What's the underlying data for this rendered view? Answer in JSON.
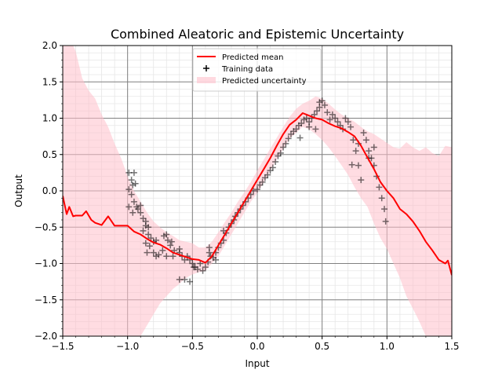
{
  "chart_data": {
    "type": "line",
    "title": "Combined Aleatoric and Epistemic Uncertainty",
    "xlabel": "Input",
    "ylabel": "Output",
    "xlim": [
      -1.5,
      1.5
    ],
    "ylim": [
      -2.0,
      2.0
    ],
    "x_ticks": [
      -1.5,
      -1.0,
      -0.5,
      0.0,
      0.5,
      1.0,
      1.5
    ],
    "x_tick_labels": [
      "−1.5",
      "−1.0",
      "−0.5",
      "0.0",
      "0.5",
      "1.0",
      "1.5"
    ],
    "y_ticks": [
      -2.0,
      -1.5,
      -1.0,
      -0.5,
      0.0,
      0.5,
      1.0,
      1.5,
      2.0
    ],
    "y_tick_labels": [
      "−2.0",
      "−1.5",
      "−1.0",
      "−0.5",
      "0.0",
      "0.5",
      "1.0",
      "1.5",
      "2.0"
    ],
    "grid": {
      "major": true,
      "minor": true
    },
    "legend": {
      "placement": "upper-center",
      "entries": [
        {
          "label": "Predicted mean",
          "kind": "line",
          "color": "#ff0000"
        },
        {
          "label": "Training data",
          "kind": "marker",
          "color": "#000000"
        },
        {
          "label": "Predicted uncertainty",
          "kind": "band",
          "color": "#ffc0cb"
        }
      ]
    },
    "colors": {
      "mean": "#ff0000",
      "data": "#000000",
      "band": "#ffc0cb",
      "major_grid": "#808080",
      "minor_grid": "#e6e6e6"
    },
    "series": [
      {
        "name": "Predicted mean",
        "x": [
          -1.5,
          -1.47,
          -1.45,
          -1.42,
          -1.4,
          -1.35,
          -1.32,
          -1.28,
          -1.25,
          -1.2,
          -1.15,
          -1.1,
          -1.05,
          -1.0,
          -0.95,
          -0.9,
          -0.85,
          -0.8,
          -0.75,
          -0.7,
          -0.65,
          -0.6,
          -0.55,
          -0.5,
          -0.45,
          -0.4,
          -0.35,
          -0.3,
          -0.25,
          -0.2,
          -0.15,
          -0.1,
          -0.05,
          0.0,
          0.05,
          0.1,
          0.15,
          0.2,
          0.25,
          0.3,
          0.35,
          0.38,
          0.42,
          0.45,
          0.5,
          0.55,
          0.6,
          0.65,
          0.7,
          0.75,
          0.8,
          0.85,
          0.9,
          0.95,
          1.0,
          1.05,
          1.1,
          1.15,
          1.2,
          1.25,
          1.3,
          1.35,
          1.4,
          1.45,
          1.47,
          1.5
        ],
        "y": [
          -0.07,
          -0.32,
          -0.22,
          -0.35,
          -0.34,
          -0.34,
          -0.28,
          -0.4,
          -0.44,
          -0.47,
          -0.35,
          -0.48,
          -0.48,
          -0.48,
          -0.56,
          -0.6,
          -0.66,
          -0.71,
          -0.74,
          -0.79,
          -0.85,
          -0.88,
          -0.91,
          -0.94,
          -0.95,
          -0.99,
          -0.9,
          -0.75,
          -0.6,
          -0.45,
          -0.3,
          -0.15,
          0.0,
          0.15,
          0.3,
          0.45,
          0.62,
          0.78,
          0.91,
          0.98,
          1.07,
          1.05,
          1.02,
          1.0,
          0.98,
          0.93,
          0.89,
          0.86,
          0.81,
          0.75,
          0.62,
          0.46,
          0.3,
          0.12,
          0.0,
          -0.1,
          -0.25,
          -0.32,
          -0.42,
          -0.55,
          -0.7,
          -0.82,
          -0.95,
          -1.0,
          -0.96,
          -1.16
        ]
      },
      {
        "name": "Predicted uncertainty",
        "x": [
          -1.5,
          -1.45,
          -1.42,
          -1.4,
          -1.35,
          -1.3,
          -1.25,
          -1.2,
          -1.15,
          -1.1,
          -1.05,
          -1.0,
          -0.95,
          -0.9,
          -0.85,
          -0.8,
          -0.75,
          -0.7,
          -0.65,
          -0.6,
          -0.55,
          -0.5,
          -0.45,
          -0.4,
          -0.35,
          -0.3,
          -0.25,
          -0.2,
          -0.15,
          -0.1,
          -0.05,
          0.0,
          0.05,
          0.1,
          0.15,
          0.2,
          0.25,
          0.3,
          0.35,
          0.4,
          0.45,
          0.5,
          0.55,
          0.6,
          0.65,
          0.7,
          0.75,
          0.8,
          0.85,
          0.9,
          0.95,
          1.0,
          1.05,
          1.1,
          1.15,
          1.2,
          1.25,
          1.3,
          1.35,
          1.4,
          1.45,
          1.5
        ],
        "upper": [
          2.0,
          2.0,
          2.0,
          1.92,
          1.55,
          1.38,
          1.27,
          1.05,
          0.88,
          0.65,
          0.45,
          0.2,
          0.0,
          -0.15,
          -0.3,
          -0.42,
          -0.5,
          -0.57,
          -0.62,
          -0.68,
          -0.7,
          -0.72,
          -0.78,
          -0.78,
          -0.7,
          -0.57,
          -0.43,
          -0.3,
          -0.15,
          -0.02,
          0.12,
          0.28,
          0.43,
          0.58,
          0.73,
          0.88,
          1.02,
          1.13,
          1.2,
          1.24,
          1.3,
          1.27,
          1.2,
          1.12,
          1.05,
          1.0,
          0.95,
          0.88,
          0.82,
          0.78,
          0.72,
          0.66,
          0.6,
          0.58,
          0.67,
          0.6,
          0.55,
          0.6,
          0.52,
          0.48,
          0.62,
          0.6
        ],
        "lower": [
          -2.0,
          -2.0,
          -2.0,
          -2.0,
          -2.0,
          -2.0,
          -2.0,
          -2.0,
          -2.0,
          -2.0,
          -2.0,
          -2.0,
          -2.0,
          -2.0,
          -1.85,
          -1.7,
          -1.55,
          -1.45,
          -1.35,
          -1.28,
          -1.2,
          -1.15,
          -1.12,
          -1.1,
          -1.0,
          -0.9,
          -0.75,
          -0.6,
          -0.45,
          -0.3,
          -0.15,
          -0.03,
          0.12,
          0.28,
          0.43,
          0.58,
          0.72,
          0.8,
          0.88,
          0.85,
          0.78,
          0.7,
          0.6,
          0.48,
          0.35,
          0.22,
          0.05,
          -0.1,
          -0.22,
          -0.45,
          -0.65,
          -0.8,
          -1.0,
          -1.2,
          -1.45,
          -1.62,
          -1.8,
          -2.0,
          -2.0,
          -2.0,
          -2.0,
          -2.0
        ]
      },
      {
        "name": "Training data",
        "points": [
          [
            -0.99,
            0.25
          ],
          [
            -0.95,
            0.25
          ],
          [
            -0.97,
            0.15
          ],
          [
            -0.96,
            0.08
          ],
          [
            -0.99,
            0.02
          ],
          [
            -0.94,
            0.1
          ],
          [
            -0.97,
            -0.05
          ],
          [
            -0.95,
            -0.15
          ],
          [
            -0.99,
            -0.22
          ],
          [
            -0.93,
            -0.22
          ],
          [
            -0.96,
            -0.3
          ],
          [
            -0.92,
            -0.25
          ],
          [
            -0.9,
            -0.2
          ],
          [
            -0.9,
            -0.3
          ],
          [
            -0.88,
            -0.38
          ],
          [
            -0.86,
            -0.42
          ],
          [
            -0.86,
            -0.48
          ],
          [
            -0.84,
            -0.5
          ],
          [
            -0.88,
            -0.55
          ],
          [
            -0.84,
            -0.6
          ],
          [
            -0.82,
            -0.65
          ],
          [
            -0.86,
            -0.72
          ],
          [
            -0.83,
            -0.76
          ],
          [
            -0.8,
            -0.7
          ],
          [
            -0.78,
            -0.68
          ],
          [
            -0.85,
            -0.85
          ],
          [
            -0.8,
            -0.85
          ],
          [
            -0.78,
            -0.9
          ],
          [
            -0.76,
            -0.88
          ],
          [
            -0.73,
            -0.82
          ],
          [
            -0.72,
            -0.62
          ],
          [
            -0.7,
            -0.6
          ],
          [
            -0.69,
            -0.68
          ],
          [
            -0.67,
            -0.75
          ],
          [
            -0.66,
            -0.7
          ],
          [
            -0.64,
            -0.82
          ],
          [
            -0.7,
            -0.9
          ],
          [
            -0.65,
            -0.9
          ],
          [
            -0.6,
            -0.8
          ],
          [
            -0.6,
            -0.85
          ],
          [
            -0.58,
            -0.9
          ],
          [
            -0.56,
            -0.95
          ],
          [
            -0.54,
            -0.9
          ],
          [
            -0.52,
            -0.95
          ],
          [
            -0.5,
            -1.0
          ],
          [
            -0.48,
            -1.05
          ],
          [
            -0.46,
            -1.08
          ],
          [
            -0.44,
            -1.0
          ],
          [
            -0.42,
            -1.1
          ],
          [
            -0.4,
            -1.05
          ],
          [
            -0.38,
            -0.98
          ],
          [
            -0.37,
            -0.85
          ],
          [
            -0.36,
            -0.9
          ],
          [
            -0.34,
            -0.92
          ],
          [
            -0.32,
            -0.85
          ],
          [
            -0.3,
            -0.78
          ],
          [
            -0.28,
            -0.72
          ],
          [
            -0.26,
            -0.68
          ],
          [
            -0.26,
            -0.55
          ],
          [
            -0.24,
            -0.58
          ],
          [
            -0.22,
            -0.5
          ],
          [
            -0.2,
            -0.45
          ],
          [
            -0.18,
            -0.4
          ],
          [
            -0.17,
            -0.35
          ],
          [
            -0.15,
            -0.3
          ],
          [
            -0.13,
            -0.25
          ],
          [
            -0.11,
            -0.2
          ],
          [
            -0.09,
            -0.15
          ],
          [
            -0.07,
            -0.1
          ],
          [
            -0.05,
            -0.05
          ],
          [
            -0.03,
            0.0
          ],
          [
            0.0,
            0.02
          ],
          [
            0.02,
            0.08
          ],
          [
            0.04,
            0.12
          ],
          [
            0.06,
            0.18
          ],
          [
            0.08,
            0.22
          ],
          [
            0.1,
            0.28
          ],
          [
            0.12,
            0.32
          ],
          [
            0.14,
            0.4
          ],
          [
            0.16,
            0.48
          ],
          [
            0.18,
            0.52
          ],
          [
            0.2,
            0.6
          ],
          [
            0.22,
            0.65
          ],
          [
            0.24,
            0.72
          ],
          [
            0.26,
            0.78
          ],
          [
            0.28,
            0.82
          ],
          [
            0.3,
            0.85
          ],
          [
            0.32,
            0.9
          ],
          [
            0.34,
            0.93
          ],
          [
            0.36,
            0.98
          ],
          [
            0.38,
            1.0
          ],
          [
            0.4,
            0.95
          ],
          [
            0.42,
            1.0
          ],
          [
            0.44,
            1.05
          ],
          [
            0.46,
            1.1
          ],
          [
            0.48,
            1.15
          ],
          [
            0.5,
            1.24
          ],
          [
            0.52,
            1.18
          ],
          [
            0.54,
            1.08
          ],
          [
            0.56,
            0.98
          ],
          [
            0.58,
            1.05
          ],
          [
            0.6,
            1.0
          ],
          [
            0.62,
            0.95
          ],
          [
            0.64,
            0.9
          ],
          [
            0.66,
            0.85
          ],
          [
            0.68,
            1.0
          ],
          [
            0.7,
            0.95
          ],
          [
            0.72,
            0.88
          ],
          [
            0.74,
            0.7
          ],
          [
            0.76,
            0.55
          ],
          [
            0.78,
            0.35
          ],
          [
            0.8,
            0.15
          ],
          [
            0.82,
            0.8
          ],
          [
            0.84,
            0.7
          ],
          [
            0.86,
            0.55
          ],
          [
            0.88,
            0.45
          ],
          [
            0.9,
            0.35
          ],
          [
            0.92,
            0.2
          ],
          [
            0.94,
            0.05
          ],
          [
            0.96,
            -0.1
          ],
          [
            0.98,
            -0.25
          ],
          [
            0.99,
            -0.42
          ],
          [
            -0.56,
            -1.22
          ],
          [
            -0.6,
            -1.22
          ],
          [
            -0.52,
            -1.25
          ],
          [
            -0.49,
            -1.05
          ],
          [
            -0.37,
            -0.78
          ],
          [
            -0.32,
            -0.95
          ],
          [
            0.33,
            0.73
          ],
          [
            0.4,
            0.88
          ],
          [
            0.45,
            0.85
          ],
          [
            0.48,
            1.22
          ],
          [
            0.73,
            0.36
          ],
          [
            0.78,
            0.65
          ],
          [
            0.9,
            0.6
          ],
          [
            0.86,
            0.45
          ]
        ]
      }
    ]
  }
}
